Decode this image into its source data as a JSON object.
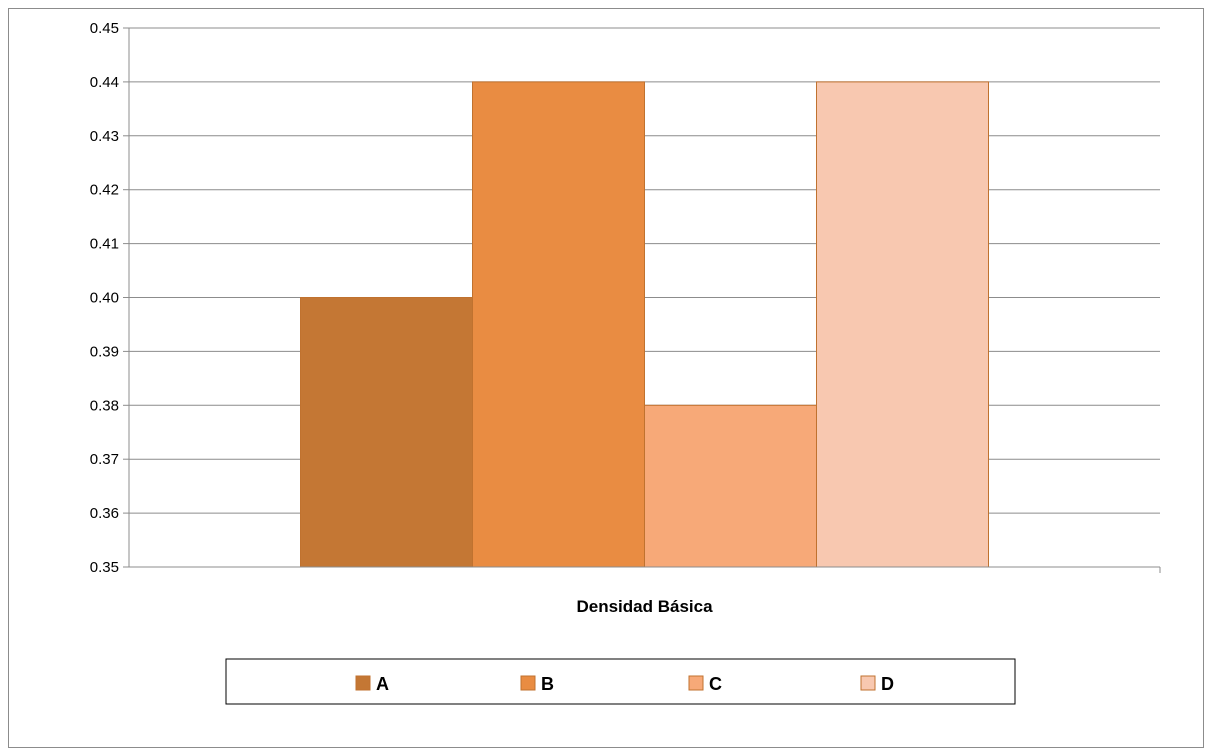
{
  "chart_data": {
    "type": "bar",
    "categories": [
      "Densidad Básica"
    ],
    "xlabel": "Densidad Básica",
    "ylabel": "",
    "title": "",
    "ylim": [
      0.35,
      0.45
    ],
    "y_ticks": [
      "0.35",
      "0.36",
      "0.37",
      "0.38",
      "0.39",
      "0.40",
      "0.41",
      "0.42",
      "0.43",
      "0.44",
      "0.45"
    ],
    "y_tick_values": [
      0.35,
      0.36,
      0.37,
      0.38,
      0.39,
      0.4,
      0.41,
      0.42,
      0.43,
      0.44,
      0.45
    ],
    "grid": true,
    "legend_position": "bottom",
    "series": [
      {
        "name": "A",
        "values": [
          0.4
        ],
        "color": "#C47734"
      },
      {
        "name": "B",
        "values": [
          0.44
        ],
        "color": "#E98C42"
      },
      {
        "name": "C",
        "values": [
          0.38
        ],
        "color": "#F7A978"
      },
      {
        "name": "D",
        "values": [
          0.44
        ],
        "color": "#F8C8B0"
      }
    ],
    "bar_border_color": "#C0722F",
    "grid_color": "#8c8c8c"
  }
}
